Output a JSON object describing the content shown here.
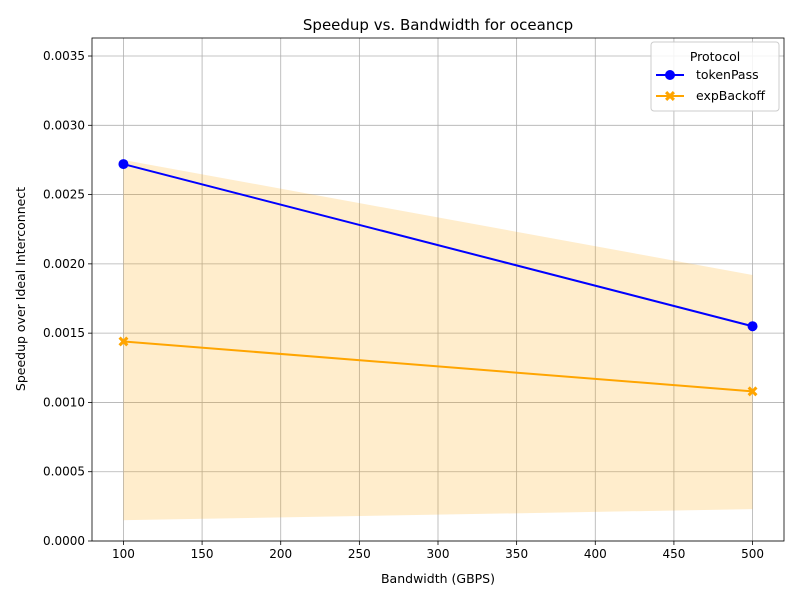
{
  "chart_data": {
    "type": "line",
    "title": "Speedup vs. Bandwidth for oceancp",
    "xlabel": "Bandwidth (GBPS)",
    "ylabel": "Speedup over Ideal Interconnect",
    "xlim": [
      80,
      520
    ],
    "ylim": [
      0,
      0.00363
    ],
    "x_ticks": [
      100,
      150,
      200,
      250,
      300,
      350,
      400,
      450,
      500
    ],
    "x_tick_labels": [
      "100",
      "150",
      "200",
      "250",
      "300",
      "350",
      "400",
      "450",
      "500"
    ],
    "y_ticks": [
      0,
      0.0005,
      0.001,
      0.0015,
      0.002,
      0.0025,
      0.003,
      0.0035
    ],
    "y_tick_labels": [
      "0.0000",
      "0.0005",
      "0.0010",
      "0.0015",
      "0.0020",
      "0.0025",
      "0.0030",
      "0.0035"
    ],
    "grid": true,
    "legend": {
      "title": "Protocol",
      "placement": "top-right"
    },
    "x": [
      100,
      500
    ],
    "series": [
      {
        "name": "tokenPass",
        "values": [
          0.00272,
          0.00155
        ],
        "color": "#0000ff",
        "marker": "circle"
      },
      {
        "name": "expBackoff",
        "values": [
          0.00144,
          0.00108
        ],
        "color": "#ffa500",
        "marker": "x",
        "band": {
          "lower": [
            0.00015,
            0.00023
          ],
          "upper": [
            0.00275,
            0.00192
          ]
        }
      }
    ]
  }
}
